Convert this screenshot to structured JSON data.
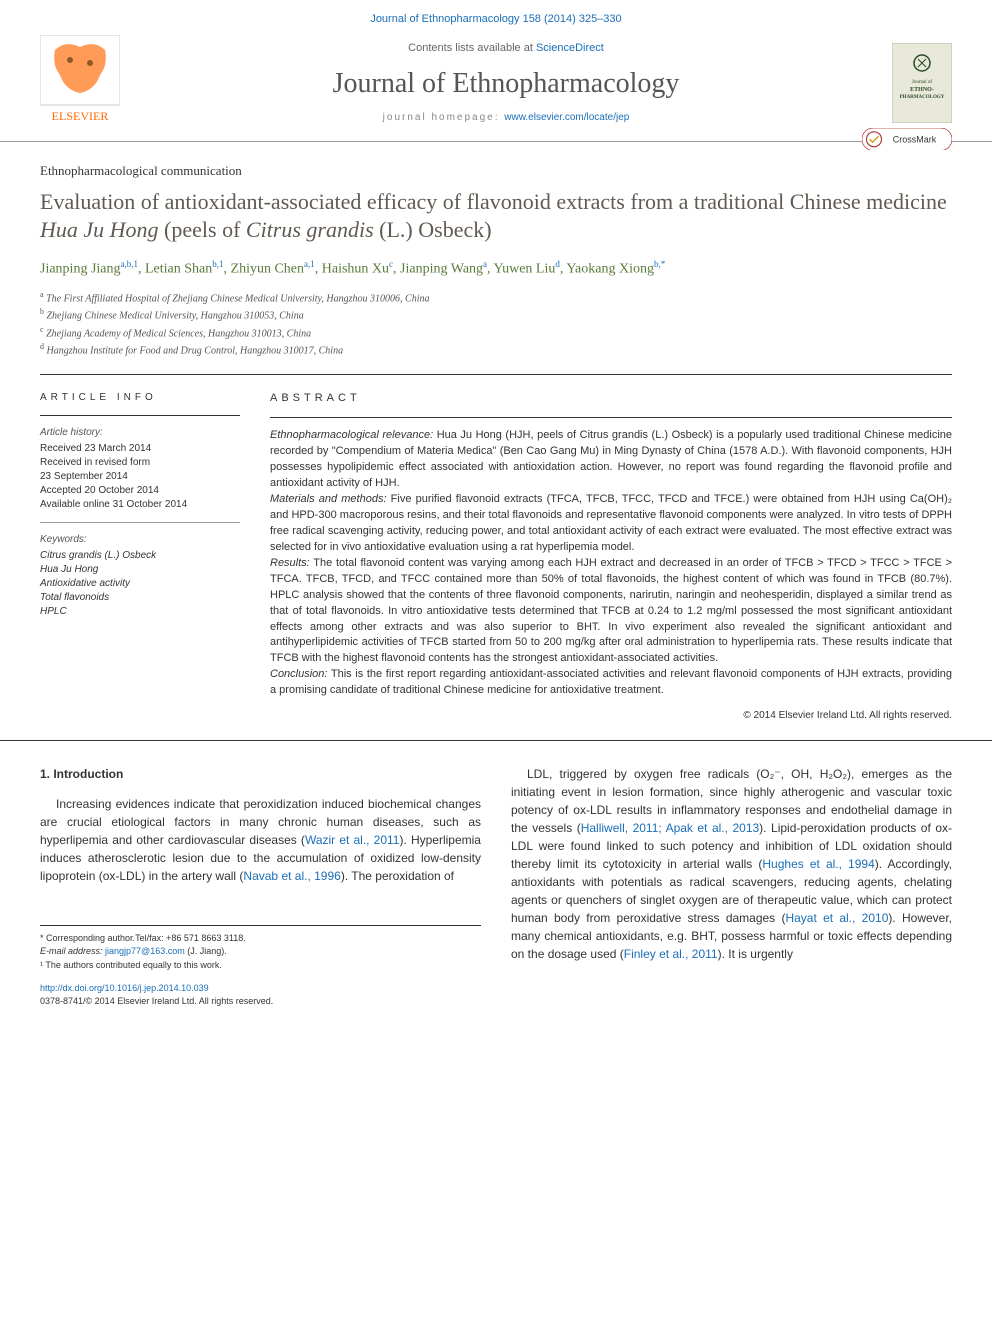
{
  "top_citation": "Journal of Ethnopharmacology 158 (2014) 325–330",
  "header": {
    "contents_prefix": "Contents lists available at ",
    "contents_link": "ScienceDirect",
    "journal_name": "Journal of Ethnopharmacology",
    "homepage_prefix": "journal homepage: ",
    "homepage_url": "www.elsevier.com/locate/jep",
    "elsevier_color": "#ff6a00",
    "cover_bg": "#e8e9d8",
    "cover_accent": "#2a4a2a",
    "cover_text1": "Journal of",
    "cover_text2": "ETHNO-",
    "cover_text3": "PHARMACOLOGY"
  },
  "article_type": "Ethnopharmacological communication",
  "title_plain": "Evaluation of antioxidant-associated efficacy of flavonoid extracts from a traditional Chinese medicine ",
  "title_italic_1": "Hua Ju Hong",
  "title_mid": " (peels of ",
  "title_italic_2": "Citrus grandis",
  "title_end": " (L.) Osbeck)",
  "crossmark_label": "CrossMark",
  "authors": [
    {
      "name": "Jianping Jiang",
      "aff": "a,b,1"
    },
    {
      "name": "Letian Shan",
      "aff": "b,1"
    },
    {
      "name": "Zhiyun Chen",
      "aff": "a,1"
    },
    {
      "name": "Haishun Xu",
      "aff": "c"
    },
    {
      "name": "Jianping Wang",
      "aff": "a"
    },
    {
      "name": "Yuwen Liu",
      "aff": "d"
    },
    {
      "name": "Yaokang Xiong",
      "aff": "b,*"
    }
  ],
  "affiliations": [
    {
      "sup": "a",
      "text": "The First Affiliated Hospital of Zhejiang Chinese Medical University, Hangzhou 310006, China"
    },
    {
      "sup": "b",
      "text": "Zhejiang Chinese Medical University, Hangzhou 310053, China"
    },
    {
      "sup": "c",
      "text": "Zhejiang Academy of Medical Sciences, Hangzhou 310013, China"
    },
    {
      "sup": "d",
      "text": "Hangzhou Institute for Food and Drug Control, Hangzhou 310017, China"
    }
  ],
  "info": {
    "heading": "ARTICLE INFO",
    "history_label": "Article history:",
    "history": [
      "Received 23 March 2014",
      "Received in revised form",
      "23 September 2014",
      "Accepted 20 October 2014",
      "Available online 31 October 2014"
    ],
    "keywords_label": "Keywords:",
    "keywords": [
      "Citrus grandis (L.) Osbeck",
      "Hua Ju Hong",
      "Antioxidative activity",
      "Total flavonoids",
      "HPLC"
    ]
  },
  "abstract": {
    "heading": "ABSTRACT",
    "sections": [
      {
        "label": "Ethnopharmacological relevance:",
        "text": " Hua Ju Hong (HJH, peels of Citrus grandis (L.) Osbeck) is a popularly used traditional Chinese medicine recorded by \"Compendium of Materia Medica\" (Ben Cao Gang Mu) in Ming Dynasty of China (1578 A.D.). With flavonoid components, HJH possesses hypolipidemic effect associated with antioxidation action. However, no report was found regarding the flavonoid profile and antioxidant activity of HJH."
      },
      {
        "label": "Materials and methods:",
        "text": " Five purified flavonoid extracts (TFCA, TFCB, TFCC, TFCD and TFCE.) were obtained from HJH using Ca(OH)₂ and HPD-300 macroporous resins, and their total flavonoids and representative flavonoid components were analyzed. In vitro tests of DPPH free radical scavenging activity, reducing power, and total antioxidant activity of each extract were evaluated. The most effective extract was selected for in vivo antioxidative evaluation using a rat hyperlipemia model."
      },
      {
        "label": "Results:",
        "text": " The total flavonoid content was varying among each HJH extract and decreased in an order of TFCB > TFCD > TFCC > TFCE > TFCA. TFCB, TFCD, and TFCC contained more than 50% of total flavonoids, the highest content of which was found in TFCB (80.7%). HPLC analysis showed that the contents of three flavonoid components, narirutin, naringin and neohesperidin, displayed a similar trend as that of total flavonoids. In vitro antioxidative tests determined that TFCB at 0.24 to 1.2 mg/ml possessed the most significant antioxidant effects among other extracts and was also superior to BHT. In vivo experiment also revealed the significant antioxidant and antihyperlipidemic activities of TFCB started from 50 to 200 mg/kg after oral administration to hyperlipemia rats. These results indicate that TFCB with the highest flavonoid contents has the strongest antioxidant-associated activities."
      },
      {
        "label": "Conclusion:",
        "text": " This is the first report regarding antioxidant-associated activities and relevant flavonoid components of HJH extracts, providing a promising candidate of traditional Chinese medicine for antioxidative treatment."
      }
    ],
    "copyright": "© 2014 Elsevier Ireland Ltd. All rights reserved."
  },
  "body": {
    "heading": "1. Introduction",
    "col1": "Increasing evidences indicate that peroxidization induced biochemical changes are crucial etiological factors in many chronic human diseases, such as hyperlipemia and other cardiovascular diseases (Wazir et al., 2011). Hyperlipemia induces atherosclerotic lesion due to the accumulation of oxidized low-density lipoprotein (ox-LDL) in the artery wall (Navab et al., 1996). The peroxidation of",
    "col2": "LDL, triggered by oxygen free radicals (O₂⁻, OH, H₂O₂), emerges as the initiating event in lesion formation, since highly atherogenic and vascular toxic potency of ox-LDL results in inflammatory responses and endothelial damage in the vessels (Halliwell, 2011; Apak et al., 2013). Lipid-peroxidation products of ox-LDL were found linked to such potency and inhibition of LDL oxidation should thereby limit its cytotoxicity in arterial walls (Hughes et al., 1994). Accordingly, antioxidants with potentials as radical scavengers, reducing agents, chelating agents or quenchers of singlet oxygen are of therapeutic value, which can protect human body from peroxidative stress damages (Hayat et al., 2010). However, many chemical antioxidants, e.g. BHT, possess harmful or toxic effects depending on the dosage used (Finley et al., 2011). It is urgently"
  },
  "footnotes": {
    "corresponding": "* Corresponding author.Tel/fax: +86 571 8663 3118.",
    "email_label": "E-mail address: ",
    "email": "jiangjp77@163.com",
    "email_who": " (J. Jiang).",
    "equal": "¹ The authors contributed equally to this work."
  },
  "doi": {
    "url": "http://dx.doi.org/10.1016/j.jep.2014.10.039",
    "issn": "0378-8741/© 2014 Elsevier Ireland Ltd. All rights reserved."
  },
  "colors": {
    "link": "#1a6fb8",
    "author": "#5a7a3a",
    "title": "#605a52"
  }
}
